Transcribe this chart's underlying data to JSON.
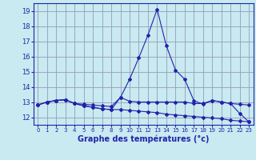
{
  "x": [
    0,
    1,
    2,
    3,
    4,
    5,
    6,
    7,
    8,
    9,
    10,
    11,
    12,
    13,
    14,
    15,
    16,
    17,
    18,
    19,
    20,
    21,
    22,
    23
  ],
  "line1": [
    12.8,
    13.0,
    13.1,
    13.15,
    12.9,
    12.85,
    12.8,
    12.75,
    12.7,
    13.3,
    13.05,
    13.0,
    13.0,
    13.0,
    13.0,
    13.0,
    13.0,
    12.9,
    12.9,
    13.1,
    13.0,
    12.9,
    12.85,
    12.8
  ],
  "line2": [
    12.8,
    13.0,
    13.1,
    13.15,
    12.9,
    12.75,
    12.65,
    12.55,
    12.5,
    12.5,
    12.45,
    12.4,
    12.35,
    12.3,
    12.2,
    12.15,
    12.1,
    12.05,
    12.0,
    11.95,
    11.9,
    11.8,
    11.75,
    11.7
  ],
  "line3": [
    12.8,
    13.0,
    13.1,
    13.15,
    12.9,
    12.75,
    12.65,
    12.55,
    12.5,
    13.3,
    14.5,
    15.9,
    17.4,
    19.1,
    16.7,
    15.1,
    14.5,
    13.1,
    12.85,
    13.1,
    13.0,
    12.9,
    12.25,
    11.7
  ],
  "line_color": "#2222aa",
  "bg_color": "#c8eaf0",
  "grid_color": "#9999bb",
  "xlabel": "Graphe des températures (°c)",
  "ylim": [
    11.5,
    19.5
  ],
  "xlim": [
    -0.5,
    23.5
  ],
  "yticks": [
    12,
    13,
    14,
    15,
    16,
    17,
    18,
    19
  ],
  "xticks": [
    0,
    1,
    2,
    3,
    4,
    5,
    6,
    7,
    8,
    9,
    10,
    11,
    12,
    13,
    14,
    15,
    16,
    17,
    18,
    19,
    20,
    21,
    22,
    23
  ],
  "xticklabels": [
    "0",
    "1",
    "2",
    "3",
    "4",
    "5",
    "6",
    "7",
    "8",
    "9",
    "10",
    "11",
    "12",
    "13",
    "14",
    "15",
    "16",
    "17",
    "18",
    "19",
    "20",
    "21",
    "22",
    "23"
  ]
}
